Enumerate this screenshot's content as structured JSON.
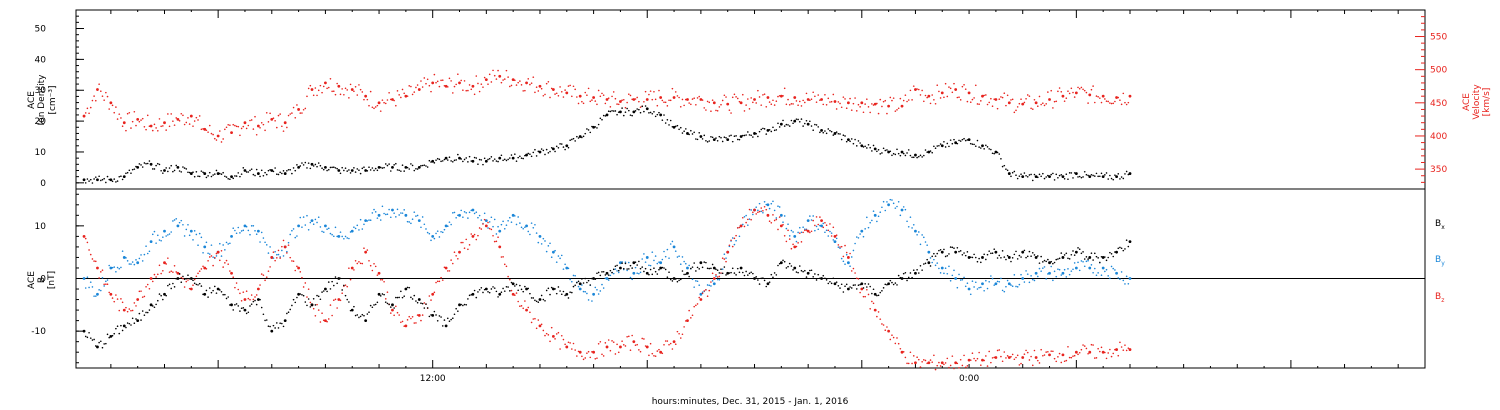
{
  "chart_data": [
    {
      "type": "scatter",
      "panel": "top",
      "ylabel_left": [
        "ACE",
        "Ion Density",
        "[cm⁻³]"
      ],
      "ylabel_right": [
        "ACE",
        "Velocity",
        "[km/s]"
      ],
      "ylim_left": [
        -2,
        56
      ],
      "yticks_left": [
        "0",
        "10",
        "20",
        "30",
        "40",
        "50"
      ],
      "ylim_right": [
        320,
        590
      ],
      "yticks_right": [
        "350",
        "400",
        "450",
        "500",
        "550"
      ],
      "series": [
        {
          "axis": "left",
          "color": "#000000",
          "x": [
            -13,
            -12.5,
            -12,
            -11.5,
            -11,
            -10.5,
            -10,
            -9.5,
            -9,
            -8.5,
            -8,
            -7.5,
            -7,
            -6.5,
            -6,
            -5.5,
            -5,
            -4.5,
            -4,
            -3.5,
            -3,
            -2.5,
            -2,
            -1.5,
            -1,
            -0.5,
            0,
            0.5,
            1,
            1.5,
            2,
            2.5,
            3,
            3.5,
            4,
            4.5,
            5,
            5.5,
            6,
            6.5,
            7,
            7.5,
            8,
            8.5,
            9,
            9.5,
            10,
            10.5,
            11,
            11.5,
            12,
            12.5,
            13,
            13.5,
            14,
            14.5,
            15,
            15.5,
            16,
            16.5,
            17,
            17.5,
            18,
            18.5,
            19,
            19.5,
            20,
            20.5,
            21,
            21.5,
            22,
            22.5,
            23,
            23.5,
            24,
            24.5,
            25,
            25.5,
            26
          ],
          "values": [
            1,
            1,
            1,
            2,
            5,
            6,
            4,
            5,
            3,
            3,
            3,
            2,
            4,
            3,
            4,
            3,
            5,
            6,
            5,
            4,
            4,
            4,
            5,
            5,
            5,
            5,
            7,
            8,
            8,
            7,
            7,
            8,
            8,
            9,
            10,
            11,
            12,
            15,
            18,
            22,
            23,
            23,
            24,
            22,
            18,
            16,
            15,
            14,
            14,
            15,
            16,
            17,
            19,
            20,
            19,
            17,
            16,
            14,
            12,
            11,
            10,
            10,
            9,
            10,
            12,
            13,
            14,
            12,
            10,
            3,
            2,
            2,
            2,
            2,
            3,
            2,
            2,
            2,
            3
          ]
        },
        {
          "axis": "right",
          "color": "#e8231e",
          "x": [
            -13,
            -12.5,
            -12,
            -11.5,
            -11,
            -10.5,
            -10,
            -9.5,
            -9,
            -8.5,
            -8,
            -7.5,
            -7,
            -6.5,
            -6,
            -5.5,
            -5,
            -4.5,
            -4,
            -3.5,
            -3,
            -2.5,
            -2,
            -1.5,
            -1,
            -0.5,
            0,
            0.5,
            1,
            1.5,
            2,
            2.5,
            3,
            3.5,
            4,
            4.5,
            5,
            5.5,
            6,
            6.5,
            7,
            7.5,
            8,
            8.5,
            9,
            9.5,
            10,
            10.5,
            11,
            11.5,
            12,
            12.5,
            13,
            13.5,
            14,
            14.5,
            15,
            15.5,
            16,
            16.5,
            17,
            17.5,
            18,
            18.5,
            19,
            19.5,
            20,
            20.5,
            21,
            21.5,
            22,
            22.5,
            23,
            23.5,
            24,
            24.5,
            25,
            25.5,
            26
          ],
          "values": [
            430,
            470,
            450,
            420,
            425,
            415,
            420,
            425,
            430,
            410,
            400,
            405,
            420,
            415,
            425,
            420,
            440,
            470,
            480,
            475,
            470,
            460,
            450,
            455,
            460,
            470,
            480,
            475,
            480,
            475,
            485,
            490,
            485,
            480,
            475,
            470,
            465,
            460,
            458,
            455,
            452,
            455,
            455,
            458,
            458,
            455,
            455,
            450,
            448,
            450,
            455,
            458,
            460,
            458,
            455,
            455,
            452,
            450,
            450,
            448,
            445,
            445,
            470,
            460,
            465,
            470,
            465,
            460,
            455,
            450,
            448,
            450,
            455,
            460,
            465,
            462,
            460,
            458,
            460
          ]
        }
      ]
    },
    {
      "type": "scatter",
      "panel": "bottom",
      "ylabel_left": [
        "ACE",
        "B",
        "[nT]"
      ],
      "ylim": [
        -17,
        17
      ],
      "yticks": [
        "-10",
        "0",
        "10"
      ],
      "legend": [
        "Bx",
        "By",
        "Bz"
      ],
      "legend_placement": "right",
      "zero_line": true,
      "series": [
        {
          "name": "Bx",
          "color": "#000000",
          "x": [
            -13,
            -12.5,
            -12,
            -11.5,
            -11,
            -10.5,
            -10,
            -9.5,
            -9,
            -8.5,
            -8,
            -7.5,
            -7,
            -6.5,
            -6,
            -5.5,
            -5,
            -4.5,
            -4,
            -3.5,
            -3,
            -2.5,
            -2,
            -1.5,
            -1,
            -0.5,
            0,
            0.5,
            1,
            1.5,
            2,
            2.5,
            3,
            3.5,
            4,
            4.5,
            5,
            5.5,
            6,
            6.5,
            7,
            7.5,
            8,
            8.5,
            9,
            9.5,
            10,
            10.5,
            11,
            11.5,
            12,
            12.5,
            13,
            13.5,
            14,
            14.5,
            15,
            15.5,
            16,
            16.5,
            17,
            17.5,
            18,
            18.5,
            19,
            19.5,
            20,
            20.5,
            21,
            21.5,
            22,
            22.5,
            23,
            23.5,
            24,
            24.5,
            25,
            25.5,
            26
          ],
          "values": [
            -10,
            -13,
            -11,
            -9,
            -8,
            -5,
            -3,
            0,
            0,
            -3,
            -2,
            -5,
            -6,
            -4,
            -10,
            -8,
            -3,
            -5,
            -2,
            0,
            -6,
            -8,
            -3,
            -5,
            -2,
            -4,
            -7,
            -9,
            -5,
            -3,
            -2,
            -3,
            -1,
            -2,
            -4,
            -2,
            -3,
            -1,
            0,
            1,
            2,
            3,
            1,
            2,
            0,
            1,
            3,
            2,
            1,
            2,
            0,
            -1,
            3,
            2,
            1,
            0,
            -1,
            -2,
            -1,
            -3,
            -1,
            0,
            1,
            3,
            5,
            5,
            4,
            4,
            5,
            4,
            5,
            4,
            3,
            4,
            5,
            4,
            4,
            5,
            7
          ]
        },
        {
          "name": "By",
          "color": "#1a86d8",
          "x": [
            -13,
            -12.5,
            -12,
            -11.5,
            -11,
            -10.5,
            -10,
            -9.5,
            -9,
            -8.5,
            -8,
            -7.5,
            -7,
            -6.5,
            -6,
            -5.5,
            -5,
            -4.5,
            -4,
            -3.5,
            -3,
            -2.5,
            -2,
            -1.5,
            -1,
            -0.5,
            0,
            0.5,
            1,
            1.5,
            2,
            2.5,
            3,
            3.5,
            4,
            4.5,
            5,
            5.5,
            6,
            6.5,
            7,
            7.5,
            8,
            8.5,
            9,
            9.5,
            10,
            10.5,
            11,
            11.5,
            12,
            12.5,
            13,
            13.5,
            14,
            14.5,
            15,
            15.5,
            16,
            16.5,
            17,
            17.5,
            18,
            18.5,
            19,
            19.5,
            20,
            20.5,
            21,
            21.5,
            22,
            22.5,
            23,
            23.5,
            24,
            24.5,
            25,
            25.5,
            26
          ],
          "values": [
            0,
            -3,
            2,
            4,
            3,
            7,
            9,
            10,
            9,
            6,
            5,
            8,
            10,
            9,
            4,
            6,
            10,
            11,
            10,
            8,
            9,
            11,
            12,
            13,
            12,
            11,
            8,
            10,
            12,
            13,
            11,
            9,
            12,
            10,
            8,
            5,
            2,
            -2,
            -3,
            0,
            3,
            1,
            4,
            3,
            6,
            2,
            -3,
            -1,
            5,
            10,
            13,
            14,
            12,
            8,
            11,
            10,
            7,
            3,
            9,
            12,
            14,
            13,
            9,
            5,
            2,
            0,
            -2,
            -1,
            -1,
            -1,
            0,
            1,
            1,
            1,
            2,
            2,
            2,
            1,
            0
          ]
        },
        {
          "name": "Bz",
          "color": "#e8231e",
          "x": [
            -13,
            -12.5,
            -12,
            -11.5,
            -11,
            -10.5,
            -10,
            -9.5,
            -9,
            -8.5,
            -8,
            -7.5,
            -7,
            -6.5,
            -6,
            -5.5,
            -5,
            -4.5,
            -4,
            -3.5,
            -3,
            -2.5,
            -2,
            -1.5,
            -1,
            -0.5,
            0,
            0.5,
            1,
            1.5,
            2,
            2.5,
            3,
            3.5,
            4,
            4.5,
            5,
            5.5,
            6,
            6.5,
            7,
            7.5,
            8,
            8.5,
            9,
            9.5,
            10,
            10.5,
            11,
            11.5,
            12,
            12.5,
            13,
            13.5,
            14,
            14.5,
            15,
            15.5,
            16,
            16.5,
            17,
            17.5,
            18,
            18.5,
            19,
            19.5,
            20,
            20.5,
            21,
            21.5,
            22,
            22.5,
            23,
            23.5,
            24,
            24.5,
            25,
            25.5,
            26
          ],
          "values": [
            8,
            2,
            -3,
            -6,
            -4,
            0,
            3,
            1,
            -2,
            2,
            5,
            1,
            -4,
            -2,
            4,
            6,
            2,
            -5,
            -8,
            -4,
            2,
            5,
            1,
            -6,
            -9,
            -7,
            -3,
            2,
            5,
            8,
            10,
            6,
            -3,
            -6,
            -9,
            -11,
            -13,
            -14,
            -14,
            -13,
            -13,
            -12,
            -13,
            -14,
            -12,
            -8,
            -4,
            0,
            5,
            10,
            13,
            12,
            10,
            6,
            9,
            11,
            8,
            4,
            -2,
            -6,
            -10,
            -14,
            -16,
            -16,
            -16,
            -16,
            -15.5,
            -15.5,
            -15,
            -15,
            -15,
            -15,
            -14.5,
            -14.5,
            -14,
            -14,
            -14,
            -13.5,
            -13.5
          ]
        }
      ]
    }
  ],
  "xaxis": {
    "xlim": [
      -13.3,
      37
    ],
    "label": "hours:minutes, Dec. 31, 2015 - Jan. 1, 2016",
    "major_ticks": [
      {
        "at": 0,
        "label": "12:00"
      },
      {
        "at": 20,
        "label": "0:00"
      }
    ]
  },
  "legend_labels": {
    "bx": "B",
    "bx_sub": "x",
    "by": "B",
    "by_sub": "y",
    "bz": "B",
    "bz_sub": "z"
  },
  "colors": {
    "black": "#000000",
    "red": "#e8231e",
    "blue": "#1a86d8"
  }
}
